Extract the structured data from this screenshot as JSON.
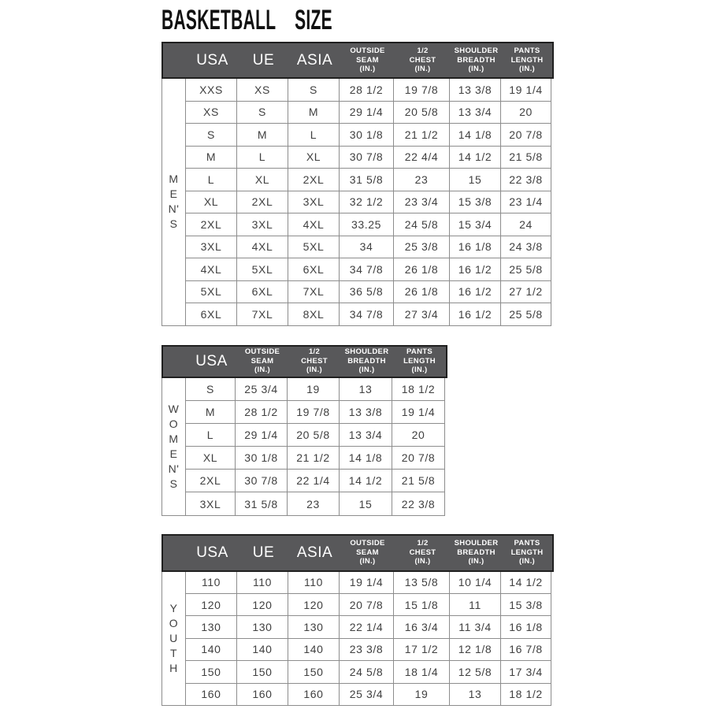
{
  "title": "BASKETBALL SIZE",
  "colors": {
    "header_bg": "#58585a",
    "header_text": "#ffffff",
    "body_text": "#404040",
    "grid_border": "#8d8d8d",
    "header_border": "#202020",
    "title_color": "#111111",
    "background": "#ffffff"
  },
  "tables": [
    {
      "group_label": "MEN'S",
      "group_letters": [
        "M",
        "E",
        "N'",
        "S"
      ],
      "header": [
        {
          "style": "blank",
          "label": ""
        },
        {
          "style": "large",
          "label": "USA"
        },
        {
          "style": "large",
          "label": "UE"
        },
        {
          "style": "large",
          "label": "ASIA"
        },
        {
          "style": "small",
          "lines": [
            "OUTSIDE",
            "SEAM",
            "(IN.)"
          ]
        },
        {
          "style": "small",
          "lines": [
            "1/2",
            "CHEST",
            "(IN.)"
          ]
        },
        {
          "style": "small",
          "lines": [
            "SHOULDER",
            "BREADTH",
            "(IN.)"
          ]
        },
        {
          "style": "small",
          "lines": [
            "PANTS",
            "LENGTH",
            "(IN.)"
          ]
        }
      ],
      "rows": [
        [
          "XXS",
          "XS",
          "S",
          "28 1/2",
          "19 7/8",
          "13 3/8",
          "19 1/4"
        ],
        [
          "XS",
          "S",
          "M",
          "29 1/4",
          "20 5/8",
          "13 3/4",
          "20"
        ],
        [
          "S",
          "M",
          "L",
          "30 1/8",
          "21 1/2",
          "14 1/8",
          "20 7/8"
        ],
        [
          "M",
          "L",
          "XL",
          "30 7/8",
          "22 4/4",
          "14 1/2",
          "21 5/8"
        ],
        [
          "L",
          "XL",
          "2XL",
          "31 5/8",
          "23",
          "15",
          "22 3/8"
        ],
        [
          "XL",
          "2XL",
          "3XL",
          "32 1/2",
          "23 3/4",
          "15 3/8",
          "23 1/4"
        ],
        [
          "2XL",
          "3XL",
          "4XL",
          "33.25",
          "24 5/8",
          "15 3/4",
          "24"
        ],
        [
          "3XL",
          "4XL",
          "5XL",
          "34",
          "25 3/8",
          "16 1/8",
          "24 3/8"
        ],
        [
          "4XL",
          "5XL",
          "6XL",
          "34 7/8",
          "26 1/8",
          "16 1/2",
          "25 5/8"
        ],
        [
          "5XL",
          "6XL",
          "7XL",
          "36 5/8",
          "26 1/8",
          "16 1/2",
          "27 1/2"
        ],
        [
          "6XL",
          "7XL",
          "8XL",
          "34 7/8",
          "27 3/4",
          "16 1/2",
          "25 5/8"
        ]
      ]
    },
    {
      "group_label": "WOMEN'S",
      "group_letters": [
        "W",
        "O",
        "M",
        "E",
        "N'",
        "S"
      ],
      "header": [
        {
          "style": "blank",
          "label": ""
        },
        {
          "style": "large",
          "label": "USA"
        },
        {
          "style": "small",
          "lines": [
            "OUTSIDE",
            "SEAM",
            "(IN.)"
          ]
        },
        {
          "style": "small",
          "lines": [
            "1/2",
            "CHEST",
            "(IN.)"
          ]
        },
        {
          "style": "small",
          "lines": [
            "SHOULDER",
            "BREADTH",
            "(IN.)"
          ]
        },
        {
          "style": "small",
          "lines": [
            "PANTS",
            "LENGTH",
            "(IN.)"
          ]
        }
      ],
      "rows": [
        [
          "S",
          "25 3/4",
          "19",
          "13",
          "18 1/2"
        ],
        [
          "M",
          "28 1/2",
          "19 7/8",
          "13 3/8",
          "19 1/4"
        ],
        [
          "L",
          "29 1/4",
          "20 5/8",
          "13 3/4",
          "20"
        ],
        [
          "XL",
          "30 1/8",
          "21 1/2",
          "14 1/8",
          "20 7/8"
        ],
        [
          "2XL",
          "30 7/8",
          "22 1/4",
          "14 1/2",
          "21 5/8"
        ],
        [
          "3XL",
          "31 5/8",
          "23",
          "15",
          "22 3/8"
        ]
      ]
    },
    {
      "group_label": "YOUTH",
      "group_letters": [
        "Y",
        "O",
        "U",
        "T",
        "H"
      ],
      "header": [
        {
          "style": "blank",
          "label": ""
        },
        {
          "style": "large",
          "label": "USA"
        },
        {
          "style": "large",
          "label": "UE"
        },
        {
          "style": "large",
          "label": "ASIA"
        },
        {
          "style": "small",
          "lines": [
            "OUTSIDE",
            "SEAM",
            "(IN.)"
          ]
        },
        {
          "style": "small",
          "lines": [
            "1/2",
            "CHEST",
            "(IN.)"
          ]
        },
        {
          "style": "small",
          "lines": [
            "SHOULDER",
            "BREADTH",
            "(IN.)"
          ]
        },
        {
          "style": "small",
          "lines": [
            "PANTS",
            "LENGTH",
            "(IN.)"
          ]
        }
      ],
      "rows": [
        [
          "110",
          "110",
          "110",
          "19 1/4",
          "13 5/8",
          "10 1/4",
          "14 1/2"
        ],
        [
          "120",
          "120",
          "120",
          "20 7/8",
          "15 1/8",
          "11",
          "15 3/8"
        ],
        [
          "130",
          "130",
          "130",
          "22 1/4",
          "16 3/4",
          "11 3/4",
          "16 1/8"
        ],
        [
          "140",
          "140",
          "140",
          "23 3/8",
          "17 1/2",
          "12 1/8",
          "16 7/8"
        ],
        [
          "150",
          "150",
          "150",
          "24 5/8",
          "18 1/4",
          "12 5/8",
          "17 3/4"
        ],
        [
          "160",
          "160",
          "160",
          "25 3/4",
          "19",
          "13",
          "18 1/2"
        ]
      ]
    }
  ]
}
